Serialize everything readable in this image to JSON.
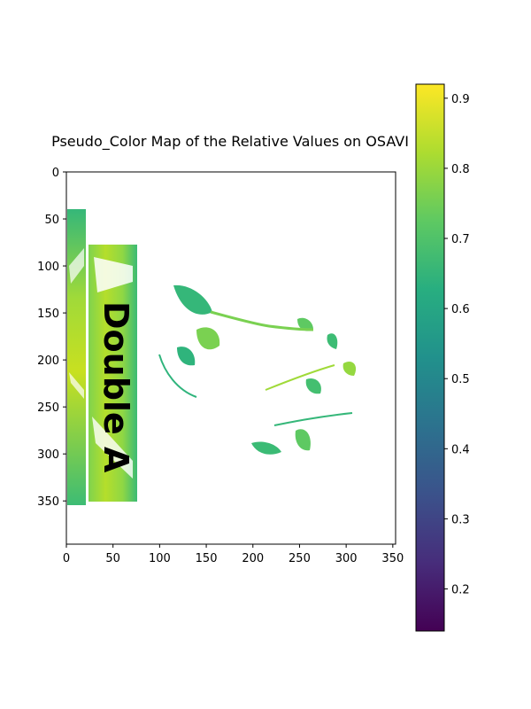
{
  "chart_data": {
    "type": "heatmap",
    "title": "Pseudo_Color Map of the Relative Values on OSAVI",
    "x_ticks": [
      0,
      50,
      100,
      150,
      200,
      250,
      300,
      350
    ],
    "y_ticks": [
      0,
      50,
      100,
      150,
      200,
      250,
      300,
      350
    ],
    "xlim": [
      0,
      353
    ],
    "ylim": [
      396,
      0
    ],
    "colorbar": {
      "colormap": "viridis",
      "range": [
        0.14,
        0.92
      ],
      "ticks": [
        0.2,
        0.3,
        0.4,
        0.5,
        0.6,
        0.7,
        0.8,
        0.9
      ]
    },
    "image_text": "Double A",
    "grid": false
  }
}
